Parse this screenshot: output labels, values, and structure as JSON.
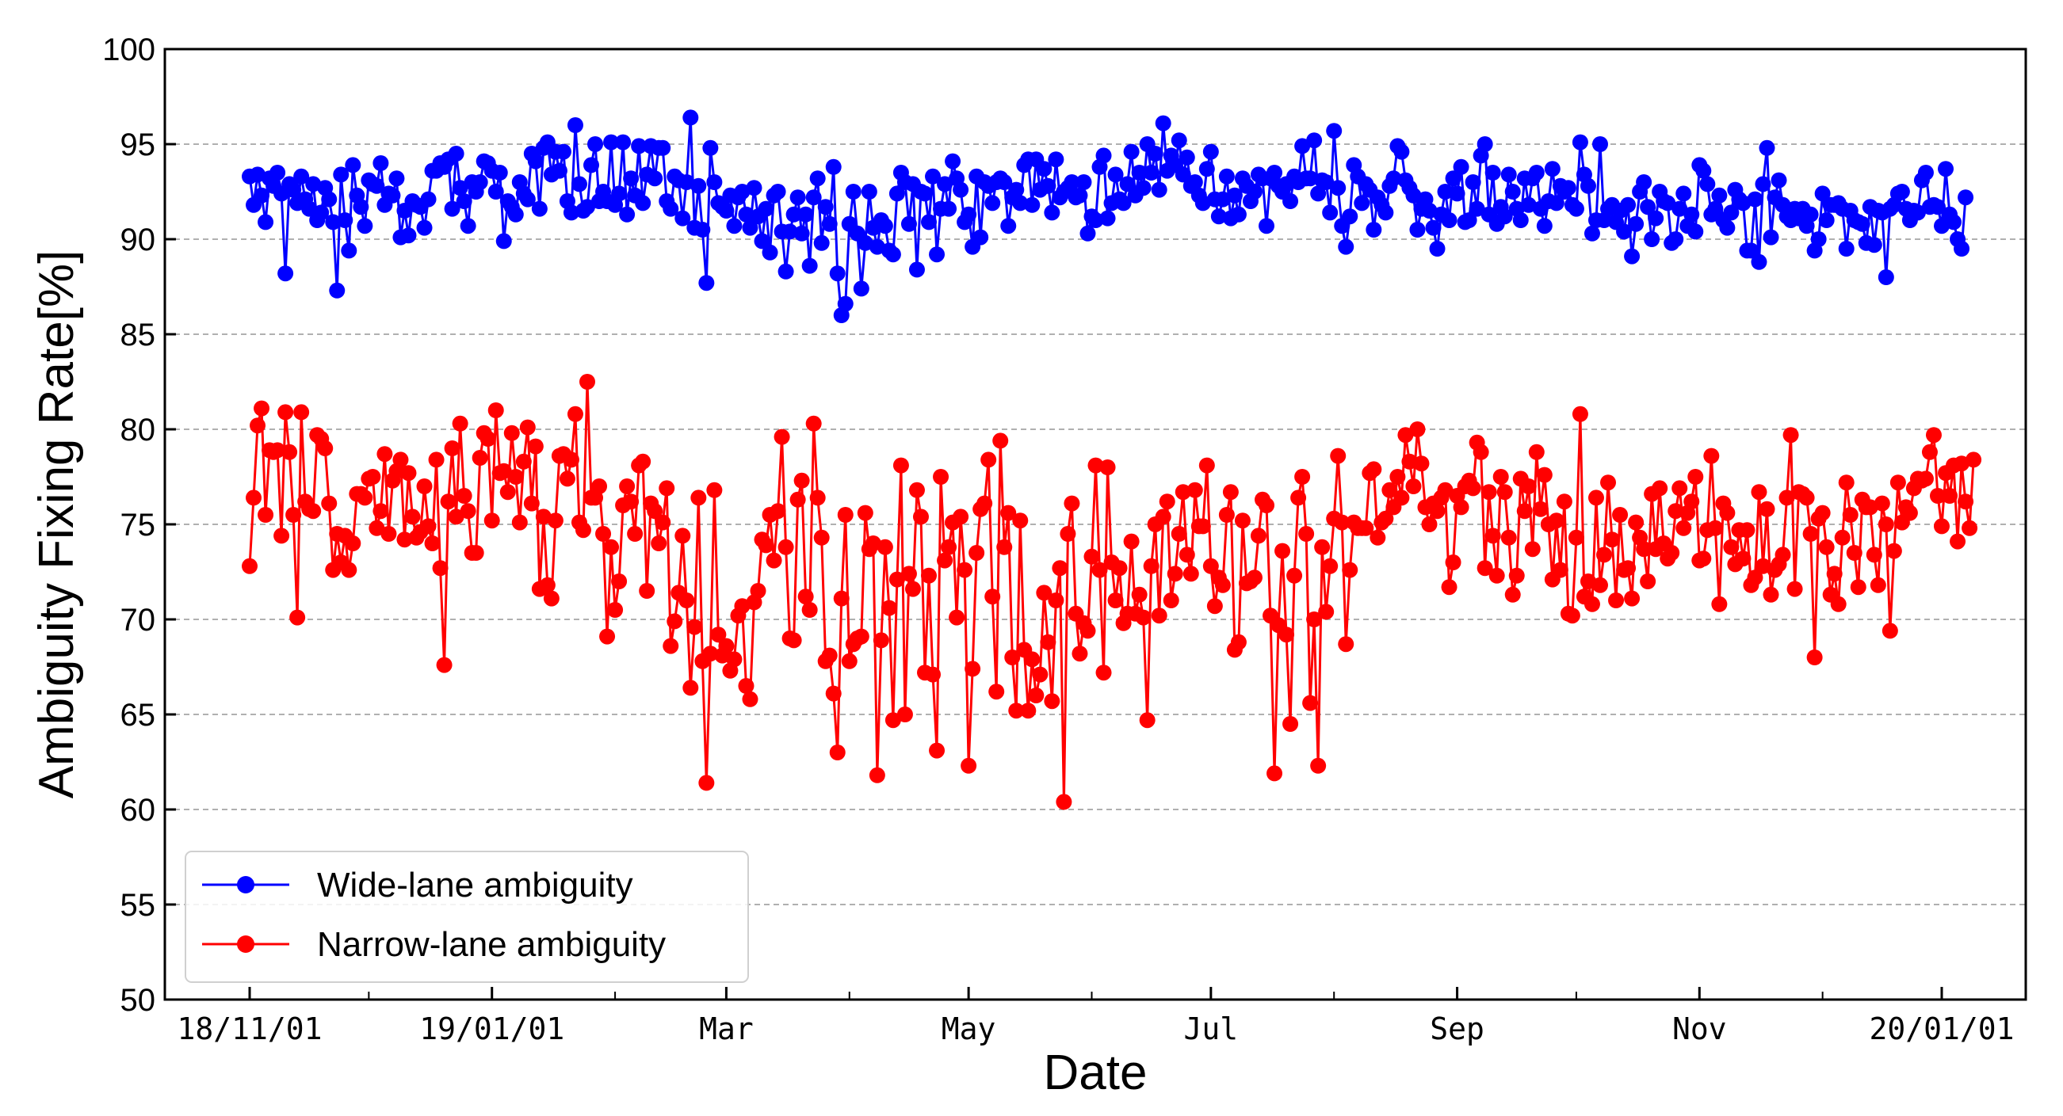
{
  "chart_data": {
    "type": "line",
    "title": "",
    "xlabel": "Date",
    "ylabel": "Ambiguity Fixing Rate[%]",
    "ylim": [
      50,
      100
    ],
    "yticks": [
      50,
      55,
      60,
      65,
      70,
      75,
      80,
      85,
      90,
      95,
      100
    ],
    "x_range_days": [
      0,
      426
    ],
    "x_major_ticks": [
      {
        "label": "18/11/01",
        "day": 0
      },
      {
        "label": "19/01/01",
        "day": 61
      },
      {
        "label": "Mar",
        "day": 120
      },
      {
        "label": "May",
        "day": 181
      },
      {
        "label": "Jul",
        "day": 242
      },
      {
        "label": "Sep",
        "day": 304
      },
      {
        "label": "Nov",
        "day": 365
      },
      {
        "label": "20/01/01",
        "day": 426
      }
    ],
    "x_minor_tick_days": [
      30,
      92,
      151,
      212,
      273,
      334,
      396
    ],
    "grid": "horizontal dashed",
    "legend_position": "lower-left",
    "series": [
      {
        "name": "Wide-lane ambiguity",
        "color": "#0000ff",
        "values": [
          93.3,
          91.8,
          93.4,
          92.3,
          90.9,
          93.2,
          92.8,
          93.5,
          92.4,
          88.2,
          92.9,
          92.6,
          91.9,
          93.3,
          92.1,
          91.6,
          92.9,
          91.0,
          91.4,
          92.7,
          92.1,
          90.9,
          87.3,
          93.4,
          91.0,
          89.4,
          93.9,
          92.3,
          91.7,
          90.7,
          93.1,
          92.9,
          92.8,
          94.0,
          91.8,
          92.4,
          92.3,
          93.2,
          90.1,
          91.5,
          90.2,
          92.0,
          91.8,
          91.7,
          90.6,
          92.1,
          93.6,
          93.6,
          94.0,
          93.8,
          94.2,
          91.6,
          94.5,
          92.7,
          92.0,
          90.7,
          93.0,
          92.5,
          93.0,
          94.1,
          94.0,
          93.6,
          92.5,
          93.5,
          89.9,
          92.0,
          91.7,
          91.3,
          93.0,
          92.4,
          92.1,
          94.5,
          94.1,
          91.6,
          94.8,
          95.1,
          93.4,
          94.6,
          93.6,
          94.6,
          92.0,
          91.4,
          96.0,
          92.9,
          91.5,
          91.7,
          93.9,
          95.0,
          92.0,
          92.5,
          92.0,
          95.1,
          91.8,
          92.4,
          95.1,
          91.3,
          93.2,
          92.3,
          94.9,
          91.9,
          93.4,
          94.9,
          93.2,
          94.8,
          94.8,
          92.0,
          91.6,
          93.3,
          93.1,
          91.1,
          93.0,
          96.4,
          90.6,
          92.8,
          90.5,
          87.7,
          94.8,
          93.0,
          91.9,
          91.7,
          91.5,
          92.3,
          90.7,
          92.2,
          92.5,
          91.3,
          90.6,
          92.7,
          91.2,
          89.9,
          91.6,
          89.3,
          92.3,
          92.5,
          90.4,
          88.3,
          90.4,
          91.3,
          92.2,
          90.3,
          91.3,
          88.6,
          92.2,
          93.2,
          89.8,
          91.7,
          90.8,
          93.8,
          88.2,
          86.0,
          86.6,
          90.8,
          92.5,
          90.3,
          87.4,
          89.8,
          92.5,
          90.6,
          89.6,
          91.0,
          90.7,
          89.4,
          89.2,
          92.4,
          93.5,
          93.0,
          90.8,
          92.9,
          88.4,
          92.5,
          92.4,
          90.9,
          93.3,
          89.2,
          91.6,
          92.9,
          91.6,
          94.1,
          93.2,
          92.6,
          90.9,
          91.3,
          89.6,
          93.3,
          90.1,
          93.0,
          92.8,
          91.9,
          93.0,
          93.2,
          93.0,
          90.7,
          92.2,
          92.6,
          91.9,
          93.9,
          94.2,
          91.8,
          94.2,
          92.6,
          93.7,
          92.8,
          91.4,
          94.2,
          92.2,
          92.5,
          92.7,
          93.0,
          92.2,
          92.3,
          93.0,
          90.3,
          91.2,
          91.0,
          93.8,
          94.4,
          91.1,
          91.9,
          93.4,
          92.1,
          91.9,
          92.9,
          94.6,
          92.3,
          93.5,
          92.7,
          95.0,
          93.5,
          94.5,
          92.6,
          96.1,
          93.6,
          94.4,
          93.9,
          95.2,
          93.4,
          94.3,
          92.8,
          93.0,
          92.3,
          91.9,
          93.7,
          94.6,
          92.1,
          91.2,
          92.1,
          93.3,
          91.1,
          92.3,
          91.3,
          93.2,
          92.8,
          92.0,
          92.5,
          93.4,
          93.2,
          90.7,
          93.2,
          93.5,
          92.8,
          92.5,
          92.9,
          92.0,
          93.3,
          93.0,
          94.9,
          93.2,
          93.2,
          95.2,
          92.4,
          93.1,
          93.0,
          91.4,
          95.7,
          92.7,
          90.7,
          89.6,
          91.2,
          93.9,
          93.3,
          91.9,
          92.9,
          92.6,
          90.5,
          92.2,
          91.8,
          91.4,
          92.8,
          93.2,
          94.9,
          94.6,
          93.1,
          92.7,
          92.3,
          90.5,
          91.6,
          92.1,
          91.5,
          90.6,
          89.5,
          91.3,
          92.5,
          91.0,
          93.2,
          92.4,
          93.8,
          90.9,
          91.0,
          93.0,
          91.6,
          94.4,
          95.0,
          91.3,
          93.5,
          90.8,
          91.7,
          91.2,
          93.4,
          92.5,
          91.6,
          91.0,
          93.2,
          91.8,
          93.2,
          93.5,
          91.6,
          90.7,
          92.0,
          93.7,
          91.9,
          92.8,
          92.5,
          92.7,
          91.8,
          91.6,
          95.1,
          93.4,
          92.8,
          90.3,
          91.0,
          95.0,
          91.0,
          91.6,
          91.8,
          90.9,
          91.5,
          90.4,
          91.8,
          89.1,
          90.8,
          92.5,
          93.0,
          91.7,
          90.0,
          91.1,
          92.5,
          92.0,
          91.9,
          89.8,
          90.0,
          91.6,
          92.4,
          90.7,
          91.3,
          90.4,
          93.9,
          93.6,
          92.9,
          91.3,
          91.6,
          92.3,
          91.0,
          90.6,
          91.4,
          92.6,
          92.1,
          91.9,
          89.4,
          89.4,
          92.1,
          88.8,
          92.9,
          94.8,
          90.1,
          92.2,
          93.1,
          91.8,
          91.2,
          91.0,
          91.6,
          91.1,
          91.6,
          90.7,
          91.3,
          89.4,
          90.0,
          92.4,
          91.0,
          91.8,
          91.8,
          91.9,
          91.6,
          89.5,
          91.5,
          91.0,
          90.9,
          90.8,
          89.8,
          91.7,
          89.7,
          91.5,
          91.4,
          88.0,
          91.6,
          91.8,
          92.4,
          92.5,
          91.6,
          91.0,
          91.5,
          91.4,
          93.1,
          93.5,
          91.7,
          91.8,
          91.7,
          90.7,
          93.7,
          91.3,
          90.9,
          90.0,
          89.5,
          92.2
        ]
      },
      {
        "name": "Narrow-lane ambiguity",
        "color": "#ff0000",
        "values": [
          72.8,
          76.4,
          80.2,
          81.1,
          75.5,
          78.9,
          78.8,
          78.9,
          74.4,
          80.9,
          78.8,
          75.5,
          70.1,
          80.9,
          76.2,
          75.8,
          75.7,
          79.7,
          79.5,
          79.0,
          76.1,
          72.6,
          74.5,
          73.0,
          74.4,
          72.6,
          74.0,
          76.6,
          76.6,
          76.4,
          77.4,
          77.5,
          74.8,
          75.7,
          78.7,
          74.5,
          77.3,
          77.8,
          78.4,
          74.2,
          77.7,
          75.4,
          74.3,
          74.6,
          77.0,
          74.9,
          74.0,
          78.4,
          72.7,
          67.6,
          76.2,
          79.0,
          75.4,
          80.3,
          76.5,
          75.7,
          73.5,
          73.5,
          78.5,
          79.8,
          79.5,
          75.2,
          81.0,
          77.7,
          77.8,
          76.7,
          79.8,
          77.5,
          75.1,
          78.3,
          80.1,
          76.1,
          79.1,
          71.6,
          75.4,
          71.8,
          71.1,
          75.2,
          78.6,
          78.7,
          77.4,
          78.4,
          80.8,
          75.1,
          74.7,
          82.5,
          76.4,
          76.4,
          77.0,
          74.5,
          69.1,
          73.8,
          70.5,
          72.0,
          76.0,
          77.0,
          76.2,
          74.5,
          78.1,
          78.3,
          71.5,
          76.1,
          75.7,
          74.0,
          75.1,
          76.9,
          68.6,
          69.9,
          71.4,
          74.4,
          71.0,
          66.4,
          69.6,
          76.4,
          67.8,
          61.4,
          68.2,
          76.8,
          69.2,
          68.1,
          68.6,
          67.3,
          67.9,
          70.2,
          70.7,
          66.5,
          65.8,
          70.9,
          71.5,
          74.2,
          73.9,
          75.5,
          73.1,
          75.7,
          79.6,
          73.8,
          69.0,
          68.9,
          76.3,
          77.3,
          71.2,
          70.5,
          80.3,
          76.4,
          74.3,
          67.8,
          68.1,
          66.1,
          63.0,
          71.1,
          75.5,
          67.8,
          68.7,
          69.0,
          69.1,
          75.6,
          73.7,
          74.0,
          61.8,
          68.9,
          73.8,
          70.6,
          64.7,
          72.1,
          78.1,
          65.0,
          72.4,
          71.6,
          76.8,
          75.4,
          67.2,
          72.3,
          67.1,
          63.1,
          77.5,
          73.1,
          73.8,
          75.1,
          70.1,
          75.4,
          72.6,
          62.3,
          67.4,
          73.5,
          75.8,
          76.1,
          78.4,
          71.2,
          66.2,
          79.4,
          73.8,
          75.6,
          68.0,
          65.2,
          75.2,
          68.4,
          65.2,
          67.9,
          66.0,
          67.1,
          71.4,
          68.8,
          65.7,
          71.0,
          72.7,
          60.4,
          74.5,
          76.1,
          70.3,
          68.2,
          69.8,
          69.4,
          73.3,
          78.1,
          72.6,
          67.2,
          78.0,
          73.0,
          71.0,
          72.7,
          69.8,
          70.3,
          74.1,
          70.3,
          71.3,
          70.1,
          64.7,
          72.8,
          75.0,
          70.2,
          75.4,
          76.2,
          71.0,
          72.4,
          74.5,
          76.7,
          73.4,
          72.4,
          76.8,
          74.9,
          74.9,
          78.1,
          72.8,
          70.7,
          72.2,
          71.8,
          75.5,
          76.7,
          68.4,
          68.8,
          75.2,
          71.9,
          72.0,
          72.2,
          74.4,
          76.3,
          76.0,
          70.2,
          61.9,
          69.7,
          73.6,
          69.2,
          64.5,
          72.3,
          76.4,
          77.5,
          74.5,
          65.6,
          70.0,
          62.3,
          73.8,
          70.4,
          72.8,
          75.3,
          78.6,
          75.1,
          68.7,
          72.6,
          75.1,
          74.8,
          74.8,
          74.8,
          77.7,
          77.9,
          74.3,
          75.1,
          75.3,
          76.8,
          75.9,
          77.5,
          76.4,
          79.7,
          78.3,
          77.0,
          80.0,
          78.2,
          75.9,
          75.0,
          76.1,
          75.7,
          76.4,
          76.8,
          71.7,
          73.0,
          76.5,
          75.9,
          77.0,
          77.3,
          76.9,
          79.3,
          78.8,
          72.7,
          76.7,
          74.4,
          72.3,
          77.5,
          76.7,
          74.3,
          71.3,
          72.3,
          77.4,
          75.7,
          77.0,
          73.7,
          78.8,
          75.8,
          77.6,
          75.0,
          72.1,
          75.2,
          72.6,
          76.2,
          70.3,
          70.2,
          74.3,
          80.8,
          71.2,
          72.0,
          70.8,
          76.4,
          71.8,
          73.4,
          77.2,
          74.2,
          71.0,
          75.5,
          72.6,
          72.7,
          71.1,
          75.1,
          74.3,
          73.7,
          72.0,
          76.6,
          73.7,
          76.9,
          74.0,
          73.2,
          73.5,
          75.7,
          76.9,
          74.8,
          75.6,
          76.2,
          77.5,
          73.1,
          73.2,
          74.7,
          78.6,
          74.8,
          70.8,
          76.1,
          75.6,
          73.8,
          72.9,
          74.7,
          73.2,
          74.7,
          71.8,
          72.2,
          76.7,
          72.8,
          75.8,
          71.3,
          72.6,
          72.9,
          73.4,
          76.4,
          79.7,
          71.6,
          76.7,
          76.6,
          76.4,
          74.5,
          68.0,
          75.3,
          75.6,
          73.8,
          71.3,
          72.4,
          70.8,
          74.3,
          77.2,
          75.5,
          73.5,
          71.7,
          76.3,
          75.9,
          75.9,
          73.4,
          71.8,
          76.1,
          75.0,
          69.4,
          73.6,
          77.2,
          75.1,
          75.9,
          75.6,
          76.9,
          77.4,
          77.3,
          77.4,
          78.8,
          79.7,
          76.5,
          74.9,
          77.7,
          76.5,
          78.1,
          74.1,
          78.2,
          76.2,
          74.8,
          78.4
        ]
      }
    ]
  }
}
